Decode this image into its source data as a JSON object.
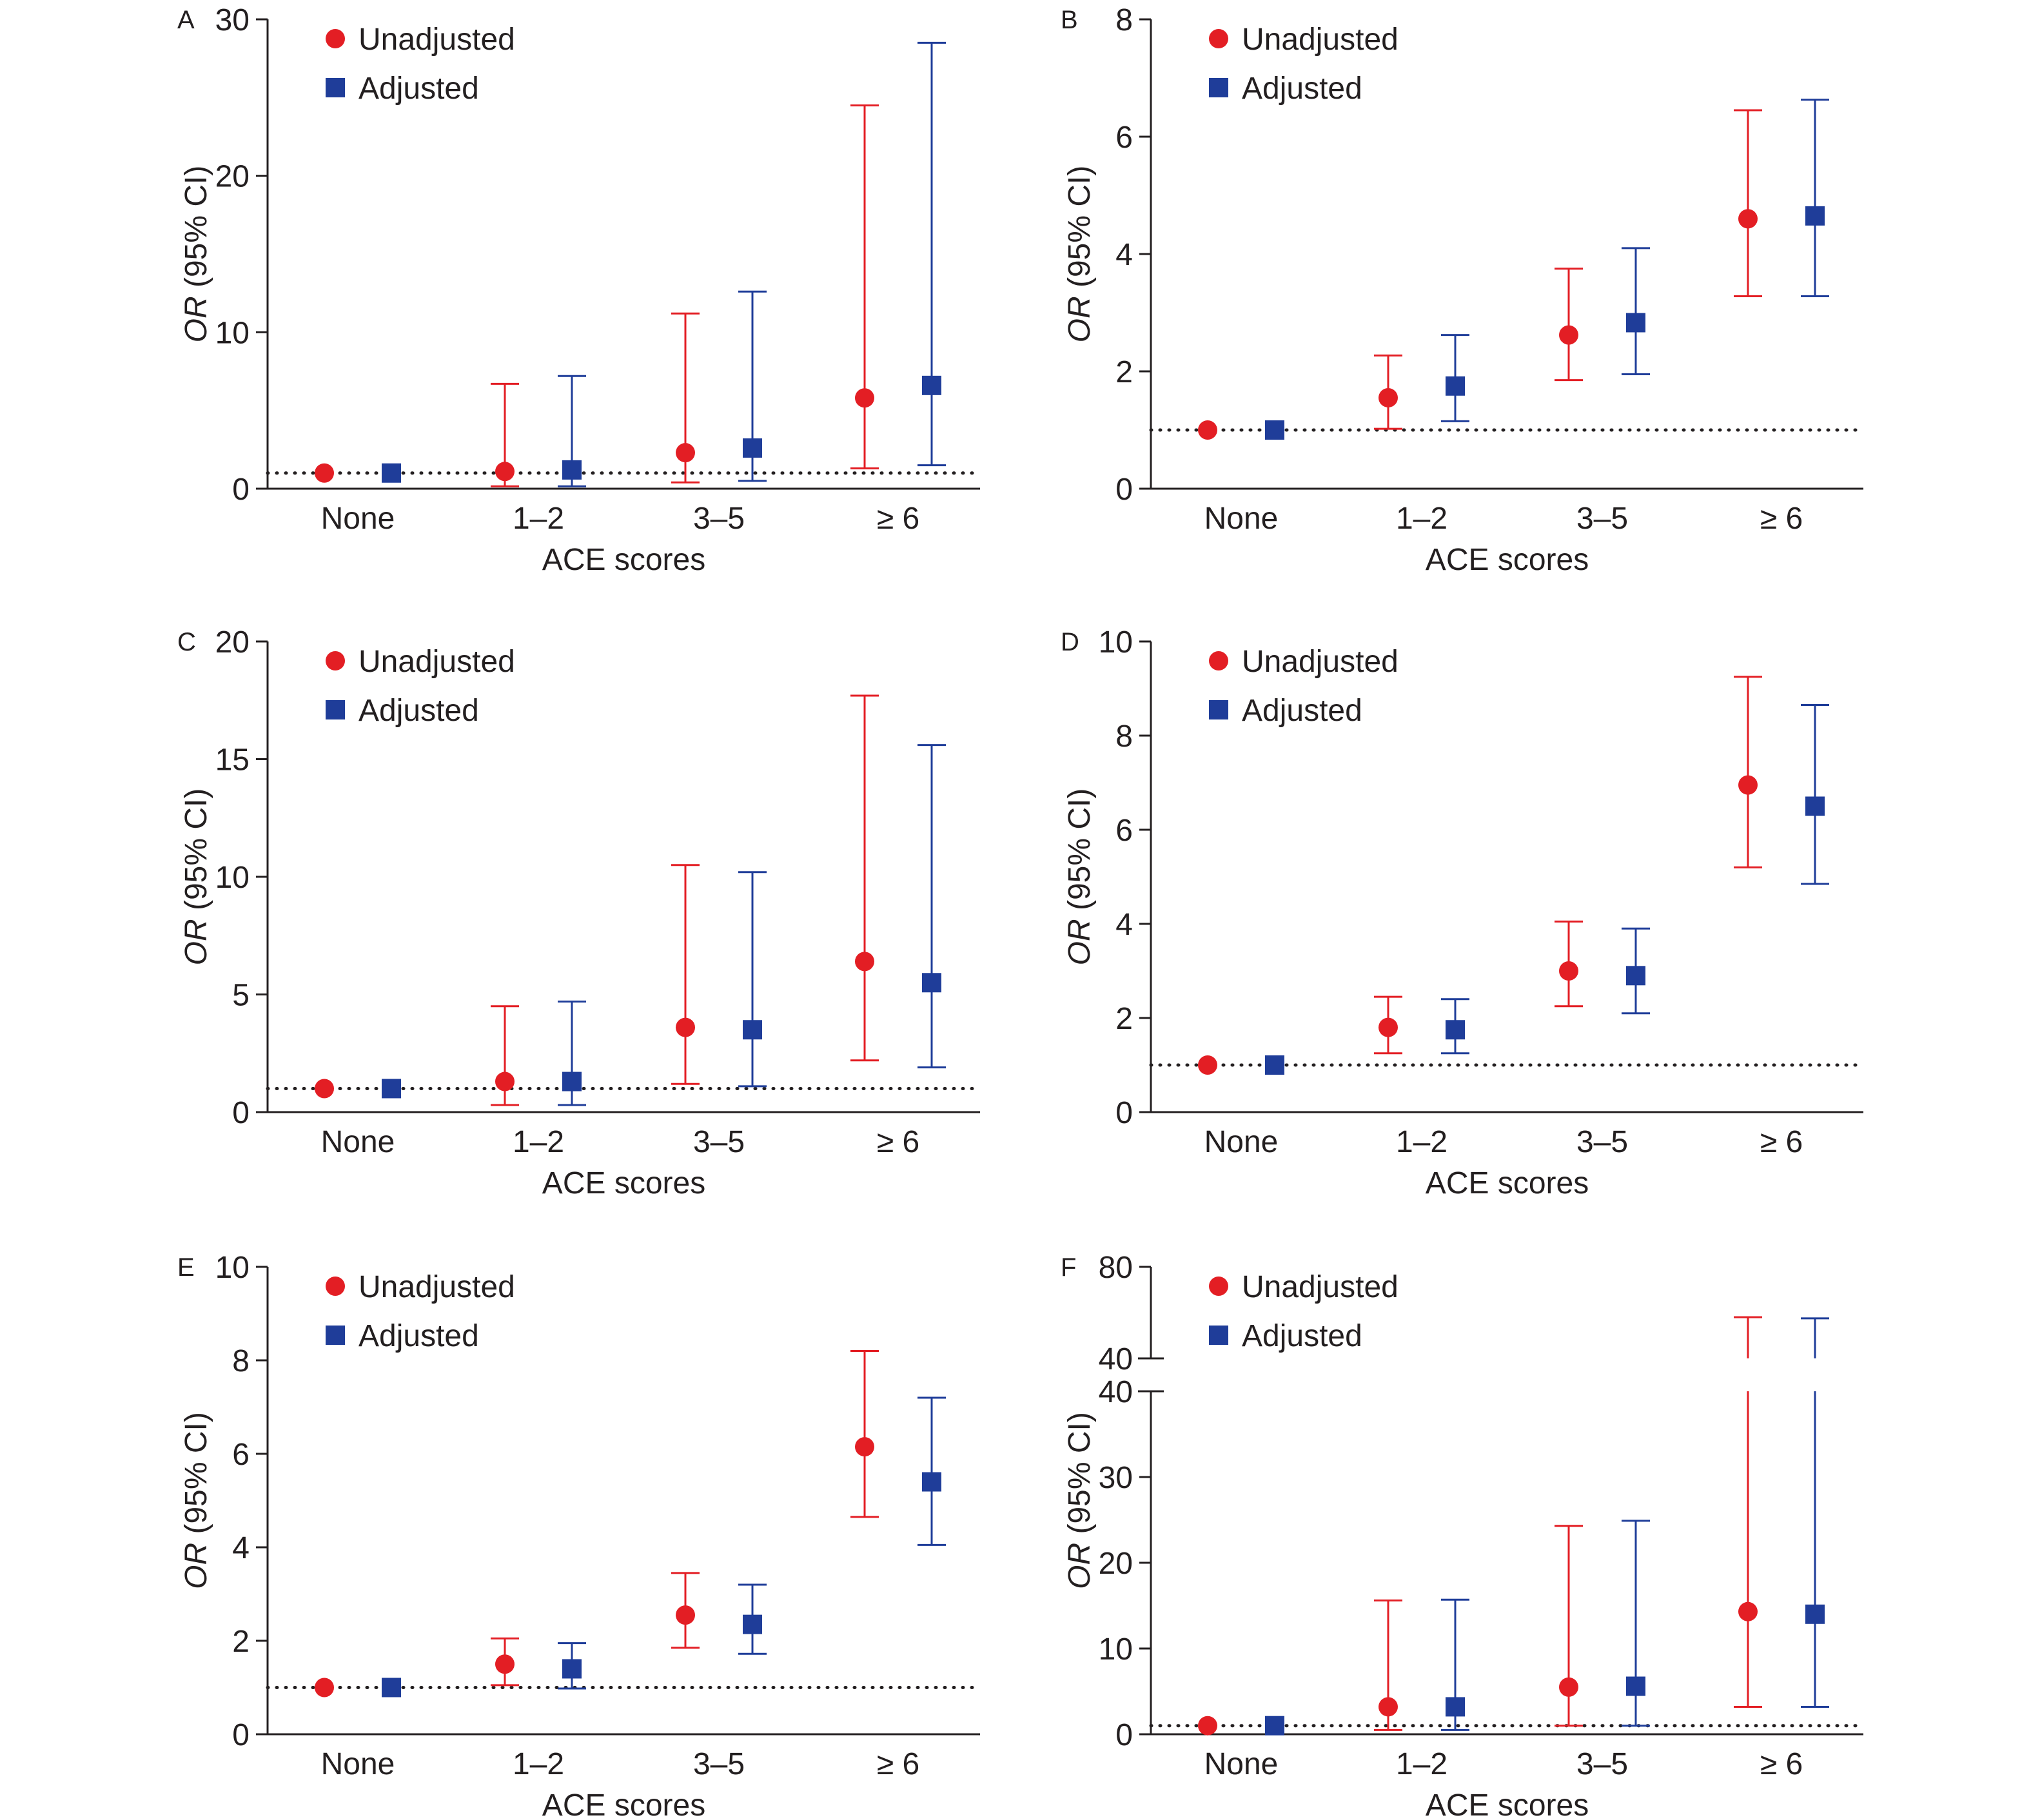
{
  "colors": {
    "unadjusted": "#e31e24",
    "adjusted": "#1f3d99",
    "axis": "#231f20"
  },
  "legend": [
    {
      "label": "Unadjusted",
      "marker": "circle",
      "color": "#e31e24"
    },
    {
      "label": "Adjusted",
      "marker": "square",
      "color": "#1f3d99"
    }
  ],
  "chart_data": [
    {
      "panel": "A",
      "type": "scatter",
      "categories": [
        "None",
        "1–2",
        "3–5",
        "≥ 6"
      ],
      "xlabel": "ACE scores",
      "ylabel_italic": "OR",
      "ylabel_rest": " (95% CI)",
      "ylim": [
        0,
        30
      ],
      "yticks": [
        0,
        10,
        20,
        30
      ],
      "reference_line": 1,
      "series": [
        {
          "name": "Unadjusted",
          "values": [
            1.0,
            1.1,
            2.3,
            5.8
          ],
          "lower": [
            1.0,
            0.15,
            0.4,
            1.3
          ],
          "upper": [
            1.0,
            6.7,
            11.2,
            24.5
          ]
        },
        {
          "name": "Adjusted",
          "values": [
            1.0,
            1.2,
            2.6,
            6.6
          ],
          "lower": [
            1.0,
            0.15,
            0.5,
            1.5
          ],
          "upper": [
            1.0,
            7.2,
            12.6,
            28.5
          ]
        }
      ]
    },
    {
      "panel": "B",
      "type": "scatter",
      "categories": [
        "None",
        "1–2",
        "3–5",
        "≥ 6"
      ],
      "xlabel": "ACE scores",
      "ylabel_italic": "OR",
      "ylabel_rest": " (95% CI)",
      "ylim": [
        0,
        8
      ],
      "yticks": [
        0,
        2,
        4,
        6,
        8
      ],
      "reference_line": 1,
      "series": [
        {
          "name": "Unadjusted",
          "values": [
            1.0,
            1.55,
            2.62,
            4.6
          ],
          "lower": [
            1.0,
            1.02,
            1.85,
            3.28
          ],
          "upper": [
            1.0,
            2.27,
            3.75,
            6.45
          ]
        },
        {
          "name": "Adjusted",
          "values": [
            1.0,
            1.75,
            2.83,
            4.65
          ],
          "lower": [
            1.0,
            1.15,
            1.95,
            3.28
          ],
          "upper": [
            1.0,
            2.62,
            4.1,
            6.63
          ]
        }
      ]
    },
    {
      "panel": "C",
      "type": "scatter",
      "categories": [
        "None",
        "1–2",
        "3–5",
        "≥ 6"
      ],
      "xlabel": "ACE scores",
      "ylabel_italic": "OR",
      "ylabel_rest": " (95% CI)",
      "ylim": [
        0,
        20
      ],
      "yticks": [
        0,
        5,
        10,
        15,
        20
      ],
      "reference_line": 1,
      "series": [
        {
          "name": "Unadjusted",
          "values": [
            1.0,
            1.3,
            3.6,
            6.4
          ],
          "lower": [
            1.0,
            0.3,
            1.2,
            2.2
          ],
          "upper": [
            1.0,
            4.5,
            10.5,
            17.7
          ]
        },
        {
          "name": "Adjusted",
          "values": [
            1.0,
            1.3,
            3.5,
            5.5
          ],
          "lower": [
            1.0,
            0.3,
            1.1,
            1.9
          ],
          "upper": [
            1.0,
            4.7,
            10.2,
            15.6
          ]
        }
      ]
    },
    {
      "panel": "D",
      "type": "scatter",
      "categories": [
        "None",
        "1–2",
        "3–5",
        "≥ 6"
      ],
      "xlabel": "ACE scores",
      "ylabel_italic": "OR",
      "ylabel_rest": " (95% CI)",
      "ylim": [
        0,
        10
      ],
      "yticks": [
        0,
        2,
        4,
        6,
        8,
        10
      ],
      "reference_line": 1,
      "series": [
        {
          "name": "Unadjusted",
          "values": [
            1.0,
            1.8,
            3.0,
            6.95
          ],
          "lower": [
            1.0,
            1.25,
            2.25,
            5.2
          ],
          "upper": [
            1.0,
            2.45,
            4.05,
            9.25
          ]
        },
        {
          "name": "Adjusted",
          "values": [
            1.0,
            1.75,
            2.9,
            6.5
          ],
          "lower": [
            1.0,
            1.25,
            2.1,
            4.85
          ],
          "upper": [
            1.0,
            2.4,
            3.9,
            8.65
          ]
        }
      ]
    },
    {
      "panel": "E",
      "type": "scatter",
      "categories": [
        "None",
        "1–2",
        "3–5",
        "≥ 6"
      ],
      "xlabel": "ACE scores",
      "ylabel_italic": "OR",
      "ylabel_rest": " (95% CI)",
      "ylim": [
        0,
        10
      ],
      "yticks": [
        0,
        2,
        4,
        6,
        8,
        10
      ],
      "reference_line": 1,
      "series": [
        {
          "name": "Unadjusted",
          "values": [
            1.0,
            1.5,
            2.55,
            6.15
          ],
          "lower": [
            1.0,
            1.05,
            1.85,
            4.65
          ],
          "upper": [
            1.0,
            2.05,
            3.45,
            8.2
          ]
        },
        {
          "name": "Adjusted",
          "values": [
            1.0,
            1.4,
            2.35,
            5.4
          ],
          "lower": [
            1.0,
            0.98,
            1.72,
            4.05
          ],
          "upper": [
            1.0,
            1.95,
            3.2,
            7.2
          ]
        }
      ]
    },
    {
      "panel": "F",
      "type": "scatter",
      "categories": [
        "None",
        "1–2",
        "3–5",
        "≥ 6"
      ],
      "xlabel": "ACE scores",
      "ylabel_italic": "OR",
      "ylabel_rest": " (95% CI)",
      "ylim": [
        0,
        80
      ],
      "yticks": [
        0,
        10,
        20,
        30,
        40
      ],
      "upper_yticks": [
        40,
        80
      ],
      "axis_break": [
        40,
        40
      ],
      "lower_range": [
        0,
        40
      ],
      "upper_range": [
        40,
        80
      ],
      "reference_line": 1,
      "series": [
        {
          "name": "Unadjusted",
          "values": [
            1.0,
            3.2,
            5.5,
            14.3
          ],
          "lower": [
            1.0,
            0.5,
            1.0,
            3.2
          ],
          "upper": [
            1.0,
            15.6,
            24.3,
            58.0
          ]
        },
        {
          "name": "Adjusted",
          "values": [
            1.0,
            3.2,
            5.6,
            14.0
          ],
          "lower": [
            1.0,
            0.5,
            1.0,
            3.2
          ],
          "upper": [
            1.0,
            15.7,
            24.9,
            57.5
          ]
        }
      ]
    }
  ]
}
